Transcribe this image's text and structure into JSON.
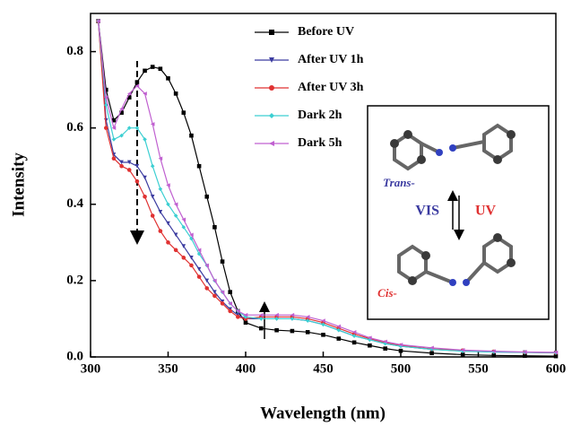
{
  "chart_data": {
    "type": "line",
    "xlabel": "Wavelength (nm)",
    "ylabel": "Intensity",
    "x": [
      305,
      310,
      315,
      320,
      325,
      330,
      335,
      340,
      345,
      350,
      355,
      360,
      365,
      370,
      375,
      380,
      385,
      390,
      395,
      400,
      410,
      420,
      430,
      440,
      450,
      460,
      470,
      480,
      490,
      500,
      520,
      540,
      560,
      580,
      600
    ],
    "series": [
      {
        "name": "Before UV",
        "color": "#000000",
        "marker": "square",
        "values": [
          0.88,
          0.7,
          0.62,
          0.64,
          0.68,
          0.72,
          0.75,
          0.76,
          0.755,
          0.73,
          0.69,
          0.64,
          0.58,
          0.5,
          0.42,
          0.34,
          0.25,
          0.17,
          0.12,
          0.09,
          0.075,
          0.07,
          0.068,
          0.065,
          0.058,
          0.048,
          0.038,
          0.03,
          0.022,
          0.016,
          0.01,
          0.006,
          0.004,
          0.003,
          0.002
        ]
      },
      {
        "name": "After UV 1h",
        "color": "#3c3ca0",
        "marker": "triangle-down",
        "values": [
          0.88,
          0.62,
          0.53,
          0.51,
          0.51,
          0.5,
          0.47,
          0.42,
          0.38,
          0.35,
          0.32,
          0.29,
          0.26,
          0.23,
          0.2,
          0.17,
          0.145,
          0.125,
          0.11,
          0.1,
          0.1,
          0.1,
          0.1,
          0.095,
          0.085,
          0.07,
          0.055,
          0.045,
          0.035,
          0.028,
          0.02,
          0.016,
          0.013,
          0.012,
          0.011
        ]
      },
      {
        "name": "After UV 3h",
        "color": "#e03232",
        "marker": "circle",
        "values": [
          0.88,
          0.6,
          0.52,
          0.5,
          0.49,
          0.46,
          0.42,
          0.37,
          0.33,
          0.3,
          0.28,
          0.26,
          0.24,
          0.21,
          0.18,
          0.16,
          0.14,
          0.12,
          0.105,
          0.1,
          0.105,
          0.105,
          0.105,
          0.1,
          0.09,
          0.075,
          0.06,
          0.048,
          0.038,
          0.03,
          0.021,
          0.017,
          0.014,
          0.012,
          0.011
        ]
      },
      {
        "name": "Dark 2h",
        "color": "#3ccfd2",
        "marker": "diamond",
        "values": [
          0.88,
          0.66,
          0.57,
          0.58,
          0.6,
          0.6,
          0.57,
          0.5,
          0.44,
          0.4,
          0.37,
          0.34,
          0.31,
          0.27,
          0.24,
          0.2,
          0.17,
          0.14,
          0.12,
          0.105,
          0.1,
          0.1,
          0.1,
          0.095,
          0.085,
          0.07,
          0.055,
          0.045,
          0.035,
          0.028,
          0.02,
          0.015,
          0.013,
          0.012,
          0.011
        ]
      },
      {
        "name": "Dark 5h",
        "color": "#c060d0",
        "marker": "triangle-left",
        "values": [
          0.88,
          0.68,
          0.6,
          0.65,
          0.69,
          0.71,
          0.69,
          0.61,
          0.52,
          0.45,
          0.4,
          0.36,
          0.32,
          0.28,
          0.24,
          0.2,
          0.17,
          0.14,
          0.12,
          0.11,
          0.11,
          0.11,
          0.11,
          0.105,
          0.095,
          0.08,
          0.065,
          0.05,
          0.04,
          0.032,
          0.024,
          0.018,
          0.015,
          0.013,
          0.012
        ]
      }
    ],
    "xlim": [
      300,
      600
    ],
    "xticks": [
      300,
      350,
      400,
      450,
      500,
      550,
      600
    ],
    "ylim": [
      0,
      0.9
    ],
    "yticks": [
      {
        "value": 0,
        "label": "0.0"
      },
      {
        "value": 0.2,
        "label": "0.2"
      },
      {
        "value": 0.4,
        "label": "0.4"
      },
      {
        "value": 0.6,
        "label": "0.6"
      },
      {
        "value": 0.8,
        "label": "0.8"
      }
    ],
    "annotations": [
      "Trans-",
      "VIS",
      "UV",
      "Cis-"
    ]
  }
}
